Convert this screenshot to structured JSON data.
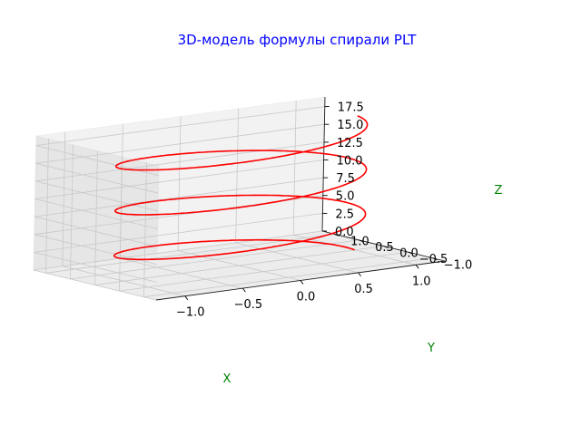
{
  "chart_data": {
    "type": "line",
    "projection": "3d",
    "title": "3D-модель формулы спирали PLT",
    "title_color": "#0000ff",
    "xlabel": "X",
    "ylabel": "Y",
    "zlabel": "Z",
    "axis_label_color": "#008000",
    "xlim": [
      -1.25,
      1.25
    ],
    "ylim": [
      -1.25,
      1.25
    ],
    "zlim": [
      0,
      18.85
    ],
    "xticks": [
      -1.0,
      -0.5,
      0.0,
      0.5,
      1.0
    ],
    "xtick_labels": [
      "−1.0",
      "−0.5",
      "0.0",
      "0.5",
      "1.0"
    ],
    "yticks": [
      -1.0,
      -0.5,
      0.0,
      0.5,
      1.0
    ],
    "ytick_labels": [
      "−1.0",
      "−0.5",
      "0.0",
      "0.5",
      "1.0"
    ],
    "zticks": [
      0.0,
      2.5,
      5.0,
      7.5,
      10.0,
      12.5,
      15.0,
      17.5
    ],
    "ztick_labels": [
      "0.0",
      "2.5",
      "5.0",
      "7.5",
      "10.0",
      "12.5",
      "15.0",
      "17.5"
    ],
    "grid": true,
    "series": [
      {
        "color": "#ff0000",
        "x_formula": "cos(t)",
        "y_formula": "sin(t)",
        "z_formula": "t",
        "t_range": [
          0,
          18.85
        ]
      }
    ]
  }
}
